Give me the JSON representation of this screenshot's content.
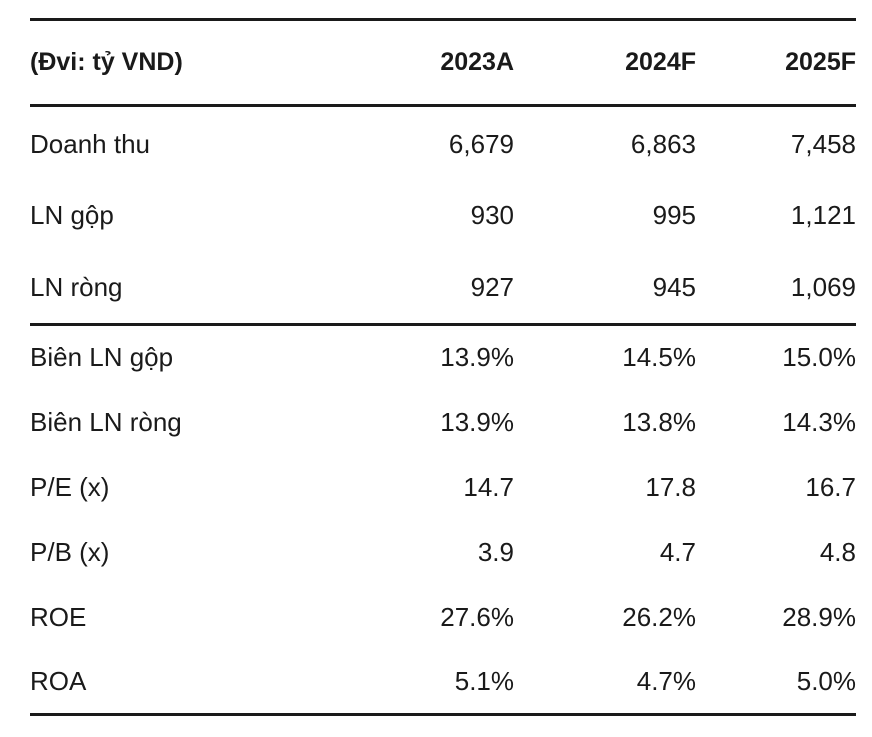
{
  "header": {
    "unit_label": "(Đvi: tỷ VND)",
    "years": [
      "2023A",
      "2024F",
      "2025F"
    ]
  },
  "block1": [
    {
      "label": "Doanh thu",
      "values": [
        "6,679",
        "6,863",
        "7,458"
      ]
    },
    {
      "label": "LN gộp",
      "values": [
        "930",
        "995",
        "1,121"
      ]
    },
    {
      "label": "LN ròng",
      "values": [
        "927",
        "945",
        "1,069"
      ]
    }
  ],
  "block2": [
    {
      "label": "Biên LN gộp",
      "values": [
        "13.9%",
        "14.5%",
        "15.0%"
      ]
    },
    {
      "label": "Biên LN ròng",
      "values": [
        "13.9%",
        "13.8%",
        "14.3%"
      ]
    },
    {
      "label": "P/E (x)",
      "values": [
        "14.7",
        "17.8",
        "16.7"
      ]
    },
    {
      "label": "P/B (x)",
      "values": [
        "3.9",
        "4.7",
        "4.8"
      ]
    },
    {
      "label": "ROE",
      "values": [
        "27.6%",
        "26.2%",
        "28.9%"
      ]
    },
    {
      "label": "ROA",
      "values": [
        "5.1%",
        "4.7%",
        "5.0%"
      ]
    }
  ]
}
